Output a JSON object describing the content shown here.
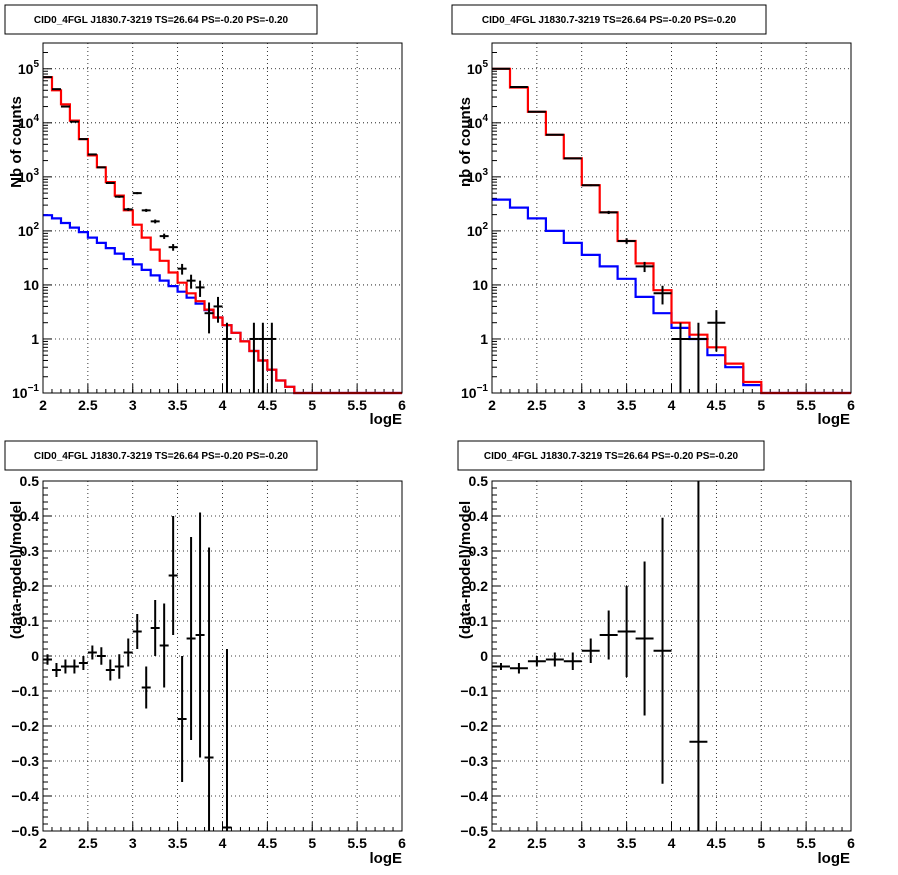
{
  "chart_data": [
    {
      "id": "top-left",
      "type": "line",
      "title": "CID0_4FGL J1830.7-3219 TS=26.64 PS=-0.20 PS=-0.20",
      "xlabel": "logE",
      "ylabel": "Nb of counts",
      "xlim": [
        2,
        6
      ],
      "ylim": [
        0.1,
        300000
      ],
      "yscale": "log",
      "grid": true,
      "xticks": [
        "2",
        "2.5",
        "3",
        "3.5",
        "4",
        "4.5",
        "5",
        "5.5",
        "6"
      ],
      "yticks": [
        {
          "value": 0.1,
          "base": "10",
          "exp": "−1"
        },
        {
          "value": 1,
          "label": "1"
        },
        {
          "value": 10,
          "label": "10"
        },
        {
          "value": 100,
          "base": "10",
          "exp": "2"
        },
        {
          "value": 1000,
          "base": "10",
          "exp": "3"
        },
        {
          "value": 10000,
          "base": "10",
          "exp": "4"
        },
        {
          "value": 100000,
          "base": "10",
          "exp": "5"
        }
      ],
      "bin_edges": [
        2.0,
        2.1,
        2.2,
        2.3,
        2.4,
        2.5,
        2.6,
        2.7,
        2.8,
        2.9,
        3.0,
        3.1,
        3.2,
        3.3,
        3.4,
        3.5,
        3.6,
        3.7,
        3.8,
        3.9,
        4.0,
        4.1,
        4.2,
        4.3,
        4.4,
        4.5,
        4.6,
        4.7,
        4.8,
        4.9,
        5.0,
        5.1,
        5.2,
        5.3,
        5.4,
        5.5,
        5.6,
        5.7,
        5.8,
        5.9,
        6.0
      ],
      "series": [
        {
          "name": "",
          "style": "step",
          "color": "#0000ff",
          "values": [
            195,
            170,
            140,
            115,
            95,
            75,
            60,
            48,
            38,
            30,
            24,
            19,
            15,
            12,
            9.5,
            7.5,
            5.8,
            4.5,
            3.4,
            2.5,
            1.8,
            1.3,
            0.9,
            0.6,
            0.4,
            0.27,
            0.17,
            0.13,
            0.1,
            0.1,
            0.1,
            0.1,
            0.1,
            0.1,
            0.1,
            0.1,
            0.1,
            0.1,
            0.1,
            0.1
          ]
        },
        {
          "name": "",
          "style": "step",
          "color": "#ff0000",
          "values": [
            70000,
            40000,
            22000,
            11000,
            5000,
            2500,
            1500,
            800,
            450,
            240,
            130,
            75,
            45,
            28,
            17,
            11,
            7,
            5,
            3.5,
            2.5,
            1.8,
            1.3,
            0.9,
            0.6,
            0.4,
            0.27,
            0.17,
            0.13,
            0.1,
            0.1,
            0.1,
            0.1,
            0.1,
            0.1,
            0.1,
            0.1,
            0.1,
            0.1,
            0.1,
            0.1
          ]
        },
        {
          "name": "",
          "style": "points",
          "color": "#000000",
          "points": [
            {
              "x": 2.05,
              "y": 70000
            },
            {
              "x": 2.15,
              "y": 42000
            },
            {
              "x": 2.25,
              "y": 20000
            },
            {
              "x": 2.35,
              "y": 10500
            },
            {
              "x": 2.45,
              "y": 5000
            },
            {
              "x": 2.55,
              "y": 2600
            },
            {
              "x": 2.65,
              "y": 1500
            },
            {
              "x": 2.75,
              "y": 770
            },
            {
              "x": 2.85,
              "y": 430
            },
            {
              "x": 2.95,
              "y": 250
            },
            {
              "x": 3.05,
              "y": 500
            },
            {
              "x": 3.15,
              "y": 240
            },
            {
              "x": 3.25,
              "y": 150
            },
            {
              "x": 3.35,
              "y": 80
            },
            {
              "x": 3.45,
              "y": 50
            },
            {
              "x": 3.55,
              "y": 20
            },
            {
              "x": 3.65,
              "y": 12
            },
            {
              "x": 3.75,
              "y": 9
            },
            {
              "x": 3.85,
              "y": 3
            },
            {
              "x": 3.95,
              "y": 4
            },
            {
              "x": 4.05,
              "y": 1
            },
            {
              "x": 4.35,
              "y": 1
            },
            {
              "x": 4.45,
              "y": 1
            },
            {
              "x": 4.55,
              "y": 1
            }
          ]
        }
      ]
    },
    {
      "id": "top-right",
      "type": "line",
      "title": "CID0_4FGL J1830.7-3219 TS=26.64 PS=-0.20 PS=-0.20",
      "xlabel": "logE",
      "ylabel": "nb of counts",
      "xlim": [
        2,
        6
      ],
      "ylim": [
        0.1,
        300000
      ],
      "yscale": "log",
      "grid": true,
      "xticks": [
        "2",
        "2.5",
        "3",
        "3.5",
        "4",
        "4.5",
        "5",
        "5.5",
        "6"
      ],
      "yticks": [
        {
          "value": 0.1,
          "base": "10",
          "exp": "−1"
        },
        {
          "value": 1,
          "label": "1"
        },
        {
          "value": 10,
          "label": "10"
        },
        {
          "value": 100,
          "base": "10",
          "exp": "2"
        },
        {
          "value": 1000,
          "base": "10",
          "exp": "3"
        },
        {
          "value": 10000,
          "base": "10",
          "exp": "4"
        },
        {
          "value": 100000,
          "base": "10",
          "exp": "5"
        }
      ],
      "bin_edges": [
        2.0,
        2.2,
        2.4,
        2.6,
        2.8,
        3.0,
        3.2,
        3.4,
        3.6,
        3.8,
        4.0,
        4.2,
        4.4,
        4.6,
        4.8,
        5.0,
        5.2,
        5.4,
        5.6,
        5.8,
        6.0
      ],
      "series": [
        {
          "name": "",
          "style": "step",
          "color": "#0000ff",
          "values": [
            380,
            270,
            170,
            100,
            60,
            36,
            22,
            13,
            6,
            3,
            1.6,
            1,
            0.5,
            0.3,
            0.14,
            0.1,
            0.1,
            0.1,
            0.1,
            0.1
          ]
        },
        {
          "name": "",
          "style": "step",
          "color": "#ff0000",
          "values": [
            100000,
            45000,
            16000,
            6000,
            2200,
            700,
            220,
            65,
            25,
            8,
            2,
            1.2,
            0.7,
            0.35,
            0.16,
            0.1,
            0.1,
            0.1,
            0.1,
            0.1
          ]
        },
        {
          "name": "",
          "style": "points",
          "color": "#000000",
          "points": [
            {
              "x": 2.1,
              "y": 100000
            },
            {
              "x": 2.3,
              "y": 46000
            },
            {
              "x": 2.5,
              "y": 16000
            },
            {
              "x": 2.7,
              "y": 6000
            },
            {
              "x": 2.9,
              "y": 2200
            },
            {
              "x": 3.1,
              "y": 700
            },
            {
              "x": 3.3,
              "y": 220
            },
            {
              "x": 3.5,
              "y": 65
            },
            {
              "x": 3.7,
              "y": 22
            },
            {
              "x": 3.9,
              "y": 7
            },
            {
              "x": 4.1,
              "y": 1
            },
            {
              "x": 4.3,
              "y": 1
            },
            {
              "x": 4.5,
              "y": 2
            }
          ]
        }
      ]
    },
    {
      "id": "bottom-left",
      "type": "scatter",
      "title": "CID0_4FGL J1830.7-3219 TS=26.64 PS=-0.20 PS=-0.20",
      "xlabel": "logE",
      "ylabel": "(data-model)/model",
      "xlim": [
        2,
        6
      ],
      "ylim": [
        -0.5,
        0.5
      ],
      "yscale": "linear",
      "grid": true,
      "xticks": [
        "2",
        "2.5",
        "3",
        "3.5",
        "4",
        "4.5",
        "5",
        "5.5",
        "6"
      ],
      "yticks": [
        "−0.5",
        "−0.4",
        "−0.3",
        "−0.2",
        "−0.1",
        "0",
        "0.1",
        "0.2",
        "0.3",
        "0.4",
        "0.5"
      ],
      "points": [
        {
          "x": 2.05,
          "y": -0.01,
          "err": 0.015
        },
        {
          "x": 2.15,
          "y": -0.04,
          "err": 0.02
        },
        {
          "x": 2.25,
          "y": -0.03,
          "err": 0.02
        },
        {
          "x": 2.35,
          "y": -0.03,
          "err": 0.02
        },
        {
          "x": 2.45,
          "y": -0.02,
          "err": 0.02
        },
        {
          "x": 2.55,
          "y": 0.01,
          "err": 0.02
        },
        {
          "x": 2.65,
          "y": 0.0,
          "err": 0.025
        },
        {
          "x": 2.75,
          "y": -0.04,
          "err": 0.03
        },
        {
          "x": 2.85,
          "y": -0.03,
          "err": 0.035
        },
        {
          "x": 2.95,
          "y": 0.01,
          "err": 0.04
        },
        {
          "x": 3.05,
          "y": 0.07,
          "err": 0.05
        },
        {
          "x": 3.15,
          "y": -0.09,
          "err": 0.06
        },
        {
          "x": 3.25,
          "y": 0.08,
          "err": 0.08
        },
        {
          "x": 3.35,
          "y": 0.03,
          "err": 0.12
        },
        {
          "x": 3.45,
          "y": 0.23,
          "err": 0.17
        },
        {
          "x": 3.55,
          "y": -0.18,
          "err": 0.18
        },
        {
          "x": 3.65,
          "y": 0.05,
          "err": 0.29
        },
        {
          "x": 3.75,
          "y": 0.06,
          "err": 0.35
        },
        {
          "x": 3.85,
          "y": -0.29,
          "err": 0.6
        },
        {
          "x": 4.05,
          "y": -0.49,
          "err": 0.51
        }
      ]
    },
    {
      "id": "bottom-right",
      "type": "scatter",
      "title": "CID0_4FGL J1830.7-3219 TS=26.64 PS=-0.20 PS=-0.20",
      "xlabel": "logE",
      "ylabel": "(data-model)/model",
      "xlim": [
        2,
        6
      ],
      "ylim": [
        -0.5,
        0.5
      ],
      "yscale": "linear",
      "grid": true,
      "xticks": [
        "2",
        "2.5",
        "3",
        "3.5",
        "4",
        "4.5",
        "5",
        "5.5",
        "6"
      ],
      "yticks": [
        "−0.5",
        "−0.4",
        "−0.3",
        "−0.2",
        "−0.1",
        "0",
        "0.1",
        "0.2",
        "0.3",
        "0.4",
        "0.5"
      ],
      "points": [
        {
          "x": 2.1,
          "y": -0.03,
          "err": 0.01
        },
        {
          "x": 2.3,
          "y": -0.035,
          "err": 0.015
        },
        {
          "x": 2.5,
          "y": -0.015,
          "err": 0.015
        },
        {
          "x": 2.7,
          "y": -0.01,
          "err": 0.02
        },
        {
          "x": 2.9,
          "y": -0.015,
          "err": 0.025
        },
        {
          "x": 3.1,
          "y": 0.015,
          "err": 0.035
        },
        {
          "x": 3.3,
          "y": 0.06,
          "err": 0.07
        },
        {
          "x": 3.5,
          "y": 0.07,
          "err": 0.13
        },
        {
          "x": 3.7,
          "y": 0.05,
          "err": 0.22
        },
        {
          "x": 3.9,
          "y": 0.015,
          "err": 0.38
        },
        {
          "x": 4.3,
          "y": -0.245,
          "err": 0.745
        }
      ]
    }
  ]
}
